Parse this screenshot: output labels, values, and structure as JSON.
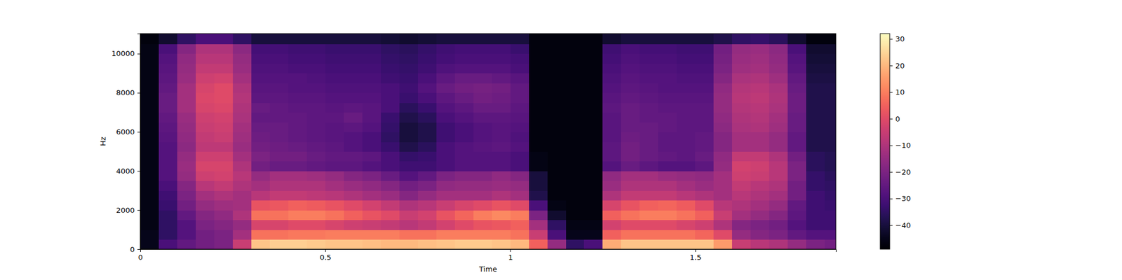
{
  "chart_data": {
    "type": "heatmap",
    "x_label": "Time",
    "y_label": "Hz",
    "xlim": [
      0,
      1.88
    ],
    "ylim": [
      0,
      11025
    ],
    "xticks": [
      0,
      0.5,
      1,
      1.5
    ],
    "yticks": [
      0,
      2000,
      4000,
      6000,
      8000,
      10000
    ],
    "x_bins": [
      0,
      0.05,
      0.1,
      0.15,
      0.2,
      0.25,
      0.3,
      0.35,
      0.4,
      0.45,
      0.5,
      0.55,
      0.6,
      0.65,
      0.7,
      0.75,
      0.8,
      0.85,
      0.9,
      0.95,
      1,
      1.05,
      1.1,
      1.15,
      1.2,
      1.25,
      1.3,
      1.35,
      1.4,
      1.45,
      1.5,
      1.55,
      1.6,
      1.65,
      1.7,
      1.75,
      1.8,
      1.85,
      1.9
    ],
    "y_bins": [
      0,
      500,
      1000,
      1500,
      2000,
      2500,
      3000,
      3500,
      4000,
      4500,
      5000,
      5500,
      6000,
      6500,
      7000,
      7500,
      8000,
      8500,
      9000,
      9500,
      10000,
      10500,
      11025
    ],
    "values": [
      [
        -45,
        -30,
        -25,
        -22,
        -20,
        -5,
        22,
        24,
        24,
        23,
        22,
        22,
        21,
        20,
        20,
        21,
        22,
        23,
        23,
        22,
        20,
        5,
        -15,
        -35,
        -30,
        18,
        22,
        22,
        22,
        22,
        22,
        15,
        -5,
        -8,
        -10,
        -15,
        -20,
        -22
      ],
      [
        -45,
        -35,
        -28,
        -22,
        -20,
        -12,
        8,
        8,
        9,
        9,
        10,
        10,
        10,
        10,
        8,
        8,
        10,
        10,
        10,
        10,
        8,
        -5,
        -30,
        -45,
        -45,
        5,
        8,
        8,
        8,
        8,
        6,
        0,
        -15,
        -18,
        -20,
        -25,
        -28,
        -28
      ],
      [
        -46,
        -35,
        -28,
        -20,
        -18,
        -15,
        -2,
        -2,
        0,
        0,
        -2,
        -4,
        -5,
        -6,
        -8,
        -6,
        -3,
        0,
        2,
        3,
        5,
        -12,
        -35,
        -46,
        -46,
        -3,
        0,
        0,
        0,
        -2,
        -4,
        -10,
        -18,
        -20,
        -22,
        -28,
        -32,
        -32
      ],
      [
        -46,
        -35,
        -25,
        -18,
        -16,
        -10,
        8,
        8,
        10,
        10,
        8,
        5,
        2,
        0,
        -5,
        -3,
        2,
        6,
        10,
        12,
        10,
        -20,
        -42,
        -47,
        -47,
        5,
        8,
        10,
        10,
        8,
        5,
        -5,
        -12,
        -15,
        -18,
        -26,
        -32,
        -32
      ],
      [
        -46,
        -33,
        -22,
        -15,
        -13,
        -12,
        2,
        3,
        5,
        4,
        2,
        0,
        -3,
        -6,
        -10,
        -8,
        -5,
        -2,
        0,
        2,
        0,
        -30,
        -46,
        -47,
        -47,
        -2,
        2,
        5,
        6,
        4,
        0,
        -8,
        -10,
        -12,
        -15,
        -25,
        -32,
        -33
      ],
      [
        -46,
        -32,
        -20,
        -12,
        -10,
        -12,
        -8,
        -6,
        -6,
        -7,
        -8,
        -10,
        -12,
        -14,
        -18,
        -15,
        -12,
        -12,
        -12,
        -10,
        -12,
        -38,
        -47,
        -47,
        -47,
        -10,
        -6,
        -6,
        -6,
        -8,
        -10,
        -12,
        -8,
        -10,
        -12,
        -22,
        -32,
        -34
      ],
      [
        -46,
        -30,
        -18,
        -8,
        -6,
        -10,
        -12,
        -10,
        -10,
        -10,
        -12,
        -14,
        -16,
        -18,
        -22,
        -20,
        -16,
        -15,
        -15,
        -14,
        -15,
        -40,
        -47,
        -47,
        -47,
        -14,
        -10,
        -10,
        -10,
        -12,
        -14,
        -12,
        -6,
        -8,
        -10,
        -22,
        -34,
        -35
      ],
      [
        -46,
        -28,
        -15,
        -4,
        -3,
        -8,
        -15,
        -12,
        -12,
        -13,
        -15,
        -18,
        -20,
        -24,
        -28,
        -25,
        -20,
        -18,
        -18,
        -16,
        -18,
        -40,
        -47,
        -47,
        -47,
        -16,
        -12,
        -12,
        -14,
        -15,
        -16,
        -12,
        -4,
        -5,
        -8,
        -20,
        -34,
        -36
      ],
      [
        -46,
        -28,
        -14,
        -2,
        -2,
        -10,
        -22,
        -24,
        -24,
        -25,
        -26,
        -26,
        -28,
        -30,
        -32,
        -32,
        -30,
        -28,
        -28,
        -28,
        -30,
        -46,
        -47,
        -47,
        -47,
        -28,
        -24,
        -26,
        -28,
        -28,
        -26,
        -15,
        -3,
        -4,
        -8,
        -20,
        -36,
        -37
      ],
      [
        -46,
        -28,
        -15,
        -4,
        -4,
        -12,
        -20,
        -22,
        -22,
        -24,
        -25,
        -25,
        -26,
        -30,
        -34,
        -33,
        -30,
        -28,
        -28,
        -28,
        -30,
        -46,
        -47,
        -47,
        -47,
        -26,
        -22,
        -24,
        -25,
        -26,
        -24,
        -16,
        -6,
        -6,
        -10,
        -22,
        -36,
        -37
      ],
      [
        -46,
        -28,
        -17,
        -7,
        -7,
        -14,
        -22,
        -23,
        -24,
        -25,
        -26,
        -28,
        -30,
        -33,
        -38,
        -36,
        -30,
        -28,
        -27,
        -26,
        -28,
        -47,
        -47,
        -47,
        -47,
        -26,
        -22,
        -24,
        -26,
        -26,
        -25,
        -18,
        -12,
        -12,
        -15,
        -25,
        -38,
        -38
      ],
      [
        -46,
        -27,
        -16,
        -6,
        -5,
        -13,
        -23,
        -24,
        -25,
        -26,
        -27,
        -28,
        -30,
        -35,
        -40,
        -38,
        -32,
        -30,
        -28,
        -27,
        -29,
        -47,
        -47,
        -47,
        -47,
        -27,
        -23,
        -24,
        -26,
        -26,
        -25,
        -18,
        -12,
        -12,
        -15,
        -25,
        -38,
        -38
      ],
      [
        -46,
        -26,
        -15,
        -5,
        -4,
        -12,
        -24,
        -24,
        -25,
        -26,
        -27,
        -26,
        -28,
        -34,
        -40,
        -38,
        -32,
        -30,
        -28,
        -27,
        -28,
        -47,
        -47,
        -47,
        -47,
        -27,
        -24,
        -24,
        -25,
        -26,
        -26,
        -17,
        -11,
        -10,
        -13,
        -24,
        -38,
        -38
      ],
      [
        -46,
        -25,
        -14,
        -4,
        -3,
        -11,
        -25,
        -25,
        -25,
        -26,
        -26,
        -24,
        -27,
        -33,
        -38,
        -36,
        -30,
        -28,
        -26,
        -26,
        -27,
        -47,
        -47,
        -47,
        -47,
        -27,
        -24,
        -25,
        -25,
        -26,
        -26,
        -16,
        -10,
        -9,
        -12,
        -24,
        -38,
        -38
      ],
      [
        -46,
        -24,
        -12,
        -2,
        -1,
        -10,
        -24,
        -25,
        -26,
        -26,
        -27,
        -26,
        -27,
        -30,
        -36,
        -33,
        -28,
        -26,
        -24,
        -24,
        -26,
        -47,
        -47,
        -47,
        -47,
        -26,
        -24,
        -25,
        -26,
        -26,
        -26,
        -15,
        -9,
        -8,
        -11,
        -23,
        -38,
        -38
      ],
      [
        -46,
        -24,
        -12,
        -1,
        0,
        -9,
        -26,
        -26,
        -27,
        -27,
        -28,
        -28,
        -28,
        -30,
        -33,
        -30,
        -26,
        -24,
        -22,
        -23,
        -25,
        -47,
        -47,
        -47,
        -47,
        -27,
        -25,
        -26,
        -27,
        -27,
        -27,
        -15,
        -8,
        -7,
        -10,
        -23,
        -38,
        -38
      ],
      [
        -46,
        -25,
        -12,
        -2,
        0,
        -10,
        -27,
        -27,
        -28,
        -28,
        -29,
        -29,
        -29,
        -30,
        -32,
        -28,
        -24,
        -22,
        -21,
        -22,
        -25,
        -47,
        -47,
        -47,
        -47,
        -28,
        -26,
        -27,
        -28,
        -28,
        -28,
        -16,
        -9,
        -8,
        -11,
        -24,
        -38,
        -38
      ],
      [
        -46,
        -26,
        -14,
        -4,
        -3,
        -12,
        -28,
        -28,
        -28,
        -29,
        -30,
        -30,
        -30,
        -32,
        -33,
        -30,
        -26,
        -24,
        -24,
        -25,
        -27,
        -47,
        -47,
        -47,
        -47,
        -29,
        -27,
        -28,
        -28,
        -29,
        -29,
        -18,
        -11,
        -10,
        -13,
        -25,
        -39,
        -39
      ],
      [
        -46,
        -27,
        -15,
        -6,
        -6,
        -14,
        -29,
        -29,
        -30,
        -30,
        -31,
        -31,
        -31,
        -33,
        -34,
        -32,
        -29,
        -28,
        -28,
        -28,
        -30,
        -47,
        -47,
        -47,
        -47,
        -30,
        -28,
        -29,
        -29,
        -30,
        -30,
        -20,
        -13,
        -12,
        -15,
        -27,
        -40,
        -40
      ],
      [
        -46,
        -28,
        -16,
        -8,
        -8,
        -15,
        -30,
        -30,
        -31,
        -31,
        -32,
        -32,
        -32,
        -34,
        -35,
        -33,
        -31,
        -30,
        -30,
        -30,
        -31,
        -47,
        -47,
        -47,
        -47,
        -31,
        -29,
        -30,
        -30,
        -31,
        -31,
        -21,
        -14,
        -13,
        -16,
        -28,
        -41,
        -41
      ],
      [
        -46,
        -30,
        -18,
        -10,
        -10,
        -17,
        -31,
        -31,
        -32,
        -32,
        -33,
        -33,
        -33,
        -35,
        -36,
        -34,
        -32,
        -31,
        -31,
        -31,
        -33,
        -47,
        -47,
        -47,
        -47,
        -32,
        -30,
        -31,
        -31,
        -32,
        -32,
        -22,
        -15,
        -14,
        -17,
        -30,
        -42,
        -42
      ],
      [
        -47,
        -42,
        -35,
        -30,
        -30,
        -35,
        -40,
        -40,
        -40,
        -40,
        -40,
        -40,
        -40,
        -41,
        -42,
        -41,
        -40,
        -40,
        -40,
        -40,
        -40,
        -47,
        -47,
        -47,
        -47,
        -42,
        -40,
        -40,
        -40,
        -40,
        -40,
        -38,
        -35,
        -34,
        -36,
        -42,
        -47,
        -47
      ]
    ],
    "color_range": [
      -49,
      32
    ],
    "color_ticks": [
      {
        "value": -40,
        "label": "−40"
      },
      {
        "value": -30,
        "label": "−30"
      },
      {
        "value": -20,
        "label": "−20"
      },
      {
        "value": -10,
        "label": "−10"
      },
      0,
      10,
      20,
      30
    ]
  }
}
